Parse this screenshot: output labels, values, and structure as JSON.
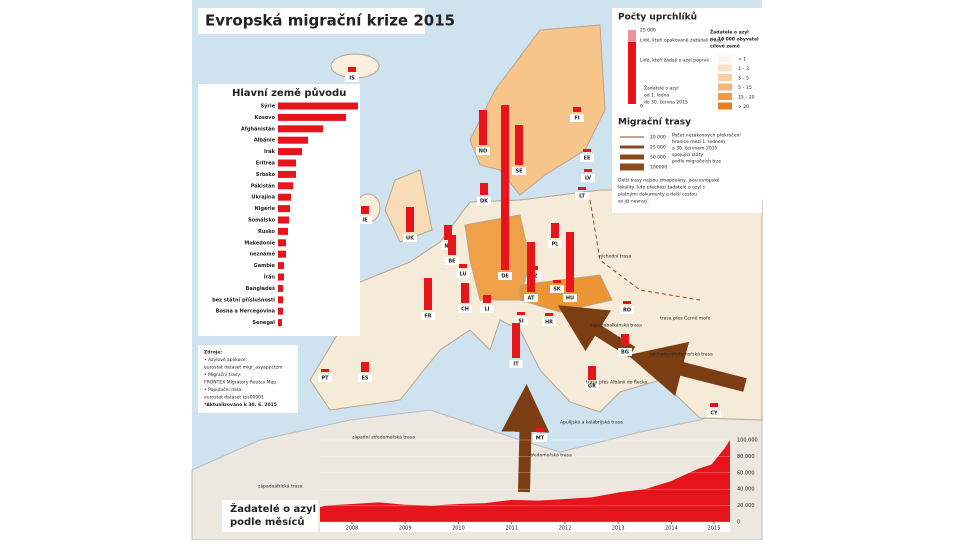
{
  "title": "Evropská migrační krize 2015",
  "origin": {
    "title": "Hlavní země původu",
    "countries": [
      "Sýrie",
      "Kosovo",
      "Afghánistán",
      "Albánie",
      "Irák",
      "Eritrea",
      "Srbsko",
      "Pákistán",
      "Ukrajina",
      "Nigérie",
      "Somálsko",
      "Rusko",
      "Makedonie",
      "neznámé",
      "Gambie",
      "Írán",
      "Bangladéš",
      "bez státní příslušnosti",
      "Bosna a Hercegovina",
      "Senegal"
    ],
    "values": [
      80,
      68,
      45,
      30,
      24,
      18,
      18,
      15,
      13,
      12,
      11,
      10,
      8,
      8,
      6,
      6,
      5,
      5,
      5,
      4
    ]
  },
  "legend": {
    "title": "Počty uprchlíků",
    "max_label": "25 000",
    "zero_label": "0",
    "repeat": "Lidé, kteří opakovaně zažádali o azyl",
    "first": "Lidé, kteří žádají o azyl poprvé",
    "period": [
      "Žadatelé o azyl",
      "od 1. ledna",
      "do 30. června 2015"
    ],
    "per_capita": [
      "Žadatelé o azyl",
      "na 10 000 obyvatel",
      "cílové země"
    ],
    "scale": [
      "< 1",
      "1 – 3",
      "3 – 5",
      "5 – 15",
      "15 – 20",
      "> 20"
    ],
    "routes_title": "Migrační trasy",
    "route_widths": [
      "10 000",
      "25 000",
      "50 000",
      "100000"
    ],
    "route_note": [
      "Počet nezákonných překročení",
      "hranice mezi 1. lednem",
      "a 30. červnem 2015",
      "spojující státy",
      "podle migračních tras"
    ],
    "other_note": [
      "Další trasy nejsou zmapovány, jsou evropské",
      "lokality, kde přechází žadatelé o azyl s",
      "platnými dokumenty a další cestou",
      "se již nevrací."
    ]
  },
  "map_bars": {
    "codes": [
      "IS",
      "NO",
      "SE",
      "FI",
      "DK",
      "EE",
      "LV",
      "LT",
      "UK",
      "IE",
      "NL",
      "BE",
      "LU",
      "DE",
      "PL",
      "CZ",
      "SK",
      "AT",
      "HU",
      "FR",
      "CH",
      "LI",
      "SI",
      "HR",
      "IT",
      "ES",
      "PT",
      "MT",
      "BG",
      "RO",
      "GR",
      "CY"
    ],
    "values": [
      5,
      35,
      40,
      5,
      12,
      3,
      3,
      3,
      25,
      8,
      15,
      20,
      4,
      165,
      15,
      4,
      3,
      50,
      60,
      32,
      20,
      8,
      3,
      3,
      35,
      10,
      3,
      4,
      12,
      3,
      14,
      4
    ]
  },
  "routes": [
    "východní trasa",
    "trasa přes Černé moře",
    "západobalkánská trasa",
    "východostředomořská trasa",
    "trasa přes Albánii do Řecka",
    "Apulijská a kalábrijská trasa",
    "středomořská trasa",
    "západní středomořská trasa",
    "západoafrická trasa"
  ],
  "sources": [
    "Zdroje:",
    "• Azylové aplikace:",
    "eurostat dataset migr_asyappctzm",
    "• Migrační trasy:",
    "FRONTEX Migratory Routes Map",
    "• Populační data:",
    "eurostat dataset tps00001",
    "*Aktualizováno k 30. 6. 2015"
  ],
  "monthly": {
    "title": [
      "Žadatelé o azyl",
      "podle měsíců"
    ],
    "x": [
      2007.9,
      2008,
      2008.5,
      2009,
      2009.5,
      2010,
      2010.5,
      2011,
      2011.5,
      2012,
      2012.5,
      2013,
      2013.5,
      2014,
      2014.5,
      2015,
      2015.25,
      2015.5,
      2015.6
    ],
    "values": [
      18000,
      20000,
      22000,
      24000,
      21000,
      20000,
      22000,
      23000,
      27000,
      26000,
      28000,
      30000,
      36000,
      40000,
      50000,
      65000,
      70000,
      90000,
      100000
    ],
    "color": "#e8141c",
    "xlim": [
      2007.9,
      2015.6
    ],
    "ylim": [
      0,
      100000
    ],
    "xticks": [
      {
        "value": 2008.5,
        "label": "2008"
      },
      {
        "value": 2009.5,
        "label": "2009"
      },
      {
        "value": 2010.5,
        "label": "2010"
      },
      {
        "value": 2011.5,
        "label": "2011"
      },
      {
        "value": 2012.5,
        "label": "2012"
      },
      {
        "value": 2013.5,
        "label": "2013"
      },
      {
        "value": 2014.5,
        "label": "2014"
      },
      {
        "value": 2015.3,
        "label": "2015"
      }
    ],
    "yticks": [
      0,
      {
        "value": 20000,
        "label": "20.000"
      },
      {
        "value": 40000,
        "label": "40.000"
      },
      {
        "value": 60000,
        "label": "60.000"
      },
      {
        "value": 80000,
        "label": "80.000"
      },
      {
        "value": 100000,
        "label": "100.000"
      }
    ]
  }
}
